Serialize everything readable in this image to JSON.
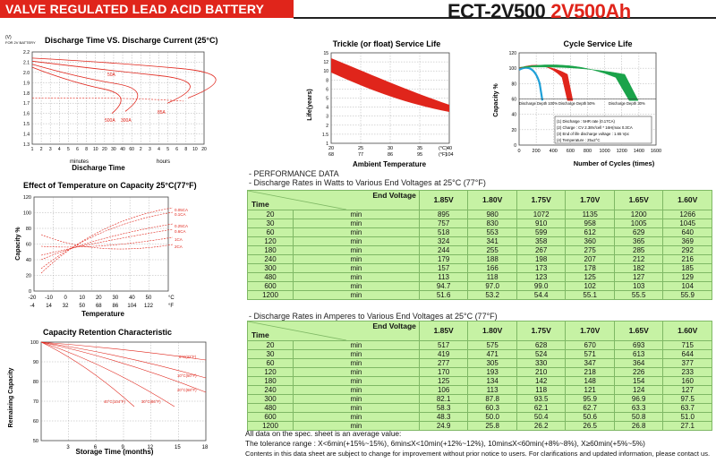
{
  "header": {
    "title": "VALVE REGULATED LEAD ACID BATTERY",
    "model": "ECT-2V500",
    "model_rating": "2V500Ah"
  },
  "discharge_curve": {
    "title": "Discharge Time VS. Discharge Current (25°C)",
    "y_unit": "(V)",
    "y_unit2": "FOR 2V BATTERY",
    "y_ticks": [
      "2.2",
      "2.1",
      "2.0",
      "1.9",
      "1.8",
      "1.7",
      "1.6",
      "1.5",
      "1.4",
      "1.3"
    ],
    "x_ticks": [
      "1",
      "2",
      "3",
      "4",
      "5",
      "6",
      "8",
      "10",
      "20",
      "30",
      "40",
      "60",
      "2",
      "3",
      "4",
      "5",
      "6",
      "8",
      "10",
      "20"
    ],
    "x_minutes": "minutes",
    "x_hours": "hours",
    "x_label": "Discharge Time",
    "curve_labels": [
      "50A",
      "85A",
      "300A",
      "500A"
    ],
    "colors": {
      "curve": "#e0251b",
      "grid": "#777"
    }
  },
  "float_life": {
    "title": "Trickle (or float) Service Life",
    "y_label": "Life(years)",
    "y_ticks": [
      "15",
      "12",
      "10",
      "8",
      "6",
      "5",
      "4",
      "3",
      "2",
      "1.5",
      "1"
    ],
    "x_ticks_c": [
      "20",
      "25",
      "30",
      "35",
      "40"
    ],
    "x_ticks_f": [
      "68",
      "77",
      "86",
      "95",
      "104"
    ],
    "x_unit_c": "(°C)",
    "x_unit_f": "(°F)",
    "x_label": "Ambient Temperature",
    "colors": {
      "band": "#e0251b"
    }
  },
  "cycle_life": {
    "title": "Cycle Service Life",
    "y_label": "Capacity %",
    "y_ticks": [
      "120",
      "100",
      "80",
      "60",
      "40",
      "20",
      "0"
    ],
    "x_ticks": [
      "0",
      "200",
      "400",
      "600",
      "800",
      "1000",
      "1200",
      "1400",
      "1600"
    ],
    "x_label": "Number of Cycles (times)",
    "depth_labels": [
      "Discharge Depth 100%",
      "Discharge Depth 50%",
      "Discharge Depth 30%"
    ],
    "legend": [
      "(1) Discharge : 5HR rate (0.17CA)",
      "(2) Charge : CV 2.38V/cell * 16H(max 0.3CA",
      "(3) End of life discharge voltage : 1.65 Vpc",
      "(4) Temperature : 25±2°C"
    ],
    "colors": {
      "d100": "#1ea0d8",
      "d50": "#e0251b",
      "d30": "#1aa34a"
    }
  },
  "temperature_capacity": {
    "title": "Effect of Temperature on Capacity  25°C(77°F)",
    "y_label": "Capacity %",
    "y_ticks": [
      "120",
      "100",
      "80",
      "60",
      "40",
      "20",
      "0"
    ],
    "x_ticks_c": [
      "-20",
      "-10",
      "0",
      "10",
      "20",
      "30",
      "40",
      "50"
    ],
    "x_ticks_f": [
      "-4",
      "14",
      "32",
      "50",
      "68",
      "86",
      "104",
      "122"
    ],
    "x_unit_c": "°C",
    "x_unit_f": "°F",
    "x_label": "Temperature",
    "curve_labels": [
      "0.05CA",
      "0.1CA",
      "0.25CA",
      "0.6CA",
      "1CA",
      "2CA"
    ]
  },
  "retention": {
    "title": "Capacity Retention Characteristic",
    "y_label": "Remaining Capacity",
    "y_ticks": [
      "100",
      "90",
      "80",
      "70",
      "60",
      "50"
    ],
    "x_ticks": [
      "3",
      "6",
      "9",
      "12",
      "15",
      "18"
    ],
    "x_label": "Storage Time (months)",
    "curve_labels": [
      "0°C(32°F)",
      "10°C(50°F)",
      "20°C(68°F)",
      "30°C(86°F)",
      "40°C(104°F)"
    ]
  },
  "performance": {
    "heading": "- PERFORMANCE DATA",
    "watts_heading": "- Discharge Rates in Watts to Various End Voltages at 25°C (77°F)",
    "amps_heading": "- Discharge Rates in Amperes to Various End Voltages at 25°C (77°F)",
    "end_voltage_label": "End Voltage",
    "time_label": "Time",
    "voltages": [
      "1.85V",
      "1.80V",
      "1.75V",
      "1.70V",
      "1.65V",
      "1.60V"
    ],
    "unit": "min",
    "times": [
      "20",
      "30",
      "60",
      "120",
      "180",
      "240",
      "300",
      "480",
      "600",
      "1200"
    ],
    "watts": [
      [
        "895",
        "980",
        "1072",
        "1135",
        "1200",
        "1266"
      ],
      [
        "757",
        "830",
        "910",
        "958",
        "1005",
        "1045"
      ],
      [
        "518",
        "553",
        "599",
        "612",
        "629",
        "640"
      ],
      [
        "324",
        "341",
        "358",
        "360",
        "365",
        "369"
      ],
      [
        "244",
        "255",
        "267",
        "275",
        "285",
        "292"
      ],
      [
        "179",
        "188",
        "198",
        "207",
        "212",
        "216"
      ],
      [
        "157",
        "166",
        "173",
        "178",
        "182",
        "185"
      ],
      [
        "113",
        "118",
        "123",
        "125",
        "127",
        "129"
      ],
      [
        "94.7",
        "97.0",
        "99.0",
        "102",
        "103",
        "104"
      ],
      [
        "51.6",
        "53.2",
        "54.4",
        "55.1",
        "55.5",
        "55.9"
      ]
    ],
    "amps": [
      [
        "517",
        "575",
        "628",
        "670",
        "693",
        "715"
      ],
      [
        "419",
        "471",
        "524",
        "571",
        "613",
        "644"
      ],
      [
        "277",
        "305",
        "330",
        "347",
        "364",
        "377"
      ],
      [
        "170",
        "193",
        "210",
        "218",
        "226",
        "233"
      ],
      [
        "125",
        "134",
        "142",
        "148",
        "154",
        "160"
      ],
      [
        "106",
        "113",
        "118",
        "121",
        "124",
        "127"
      ],
      [
        "82.1",
        "87.8",
        "93.5",
        "95.9",
        "96.9",
        "97.5"
      ],
      [
        "58.3",
        "60.3",
        "62.1",
        "62.7",
        "63.3",
        "63.7"
      ],
      [
        "48.3",
        "50.0",
        "50.4",
        "50.6",
        "50.8",
        "51.0"
      ],
      [
        "24.9",
        "25.8",
        "26.2",
        "26.5",
        "26.8",
        "27.1"
      ]
    ]
  },
  "notes": {
    "line1": "All data on the spec. sheet is an average value:",
    "line2": "The tolerance range : X<6min(+15%~15%), 6min≤X<10min(+12%~12%), 10min≤X<60min(+8%~8%), X≥60min(+5%~5%)",
    "line3": "Contents in this data sheet are subject to change for improvement without prior notice to users. For clarifications and updated information, please contact us."
  }
}
